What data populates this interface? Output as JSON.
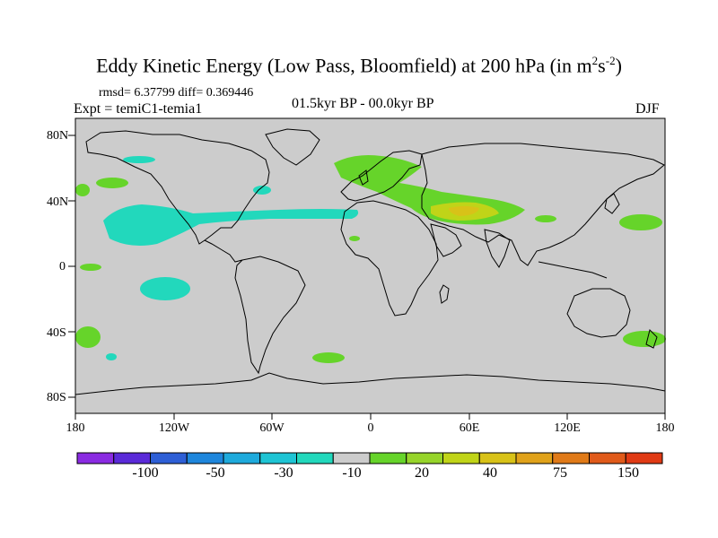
{
  "header": {
    "title_main": "Eddy Kinetic Energy (Low Pass, Bloomfield) at 200 hPa (in m",
    "title_sup1": "2",
    "title_mid": "s",
    "title_sup2": "-2",
    "title_end": ")",
    "stats": "rmsd= 6.37799  diff= 0.369446",
    "experiment": "Expt = temiC1-temia1",
    "period": "01.5kyr BP - 00.0kyr BP",
    "season": "DJF"
  },
  "axes": {
    "lat_labels": [
      "80N",
      "40N",
      "0",
      "40S",
      "80S"
    ],
    "lon_labels": [
      "180",
      "120W",
      "60W",
      "0",
      "60E",
      "120E",
      "180"
    ]
  },
  "colorbar": {
    "colors": [
      "#8a2be2",
      "#5a2ad8",
      "#2e5fd6",
      "#1e86dc",
      "#1eaadc",
      "#1ec4d4",
      "#22d8bc",
      "#cccccc",
      "#66d42a",
      "#96d42a",
      "#c0d418",
      "#d8c218",
      "#e0a21a",
      "#e07a18",
      "#e05a1a",
      "#e03a14"
    ],
    "labels": [
      "-100",
      "-50",
      "-30",
      "-10",
      "20",
      "40",
      "75",
      "150"
    ]
  },
  "map_data": {
    "projection": "cylindrical-equidistant",
    "lon_range": [
      -180,
      180
    ],
    "lat_range": [
      -90,
      90
    ],
    "background_color": "#cccccc"
  }
}
